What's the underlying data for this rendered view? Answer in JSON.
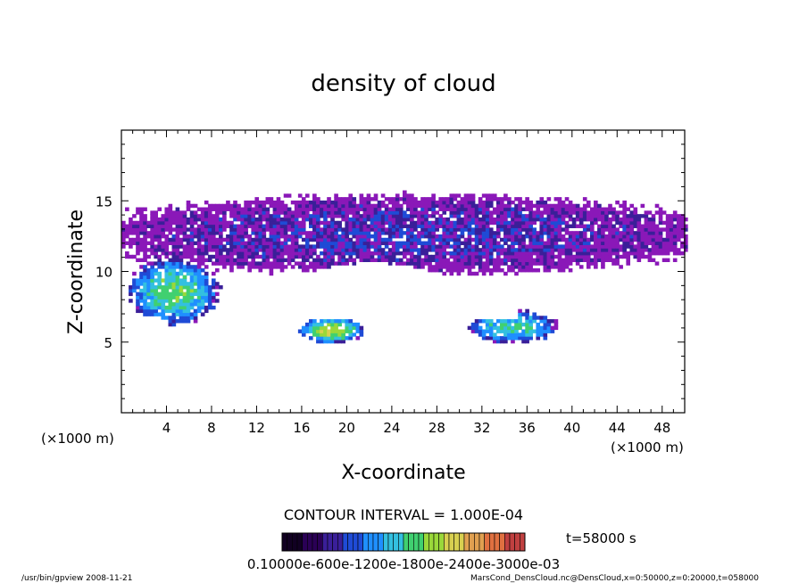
{
  "chart_data": {
    "type": "heatmap",
    "title": "density of cloud",
    "xlabel": "X-coordinate",
    "ylabel": "Z-coordinate",
    "x_unit": "(×1000 m)",
    "y_unit": "(×1000 m)",
    "xlim": [
      0,
      50
    ],
    "ylim": [
      0,
      20
    ],
    "x_ticks": [
      4,
      8,
      12,
      16,
      20,
      24,
      28,
      32,
      36,
      40,
      44,
      48
    ],
    "y_ticks": [
      5,
      10,
      15
    ],
    "contour_interval": "CONTOUR INTERVAL = 1.000E-04",
    "time_label": "t=58000 s",
    "colorbar": {
      "label": "0.10000e-600e-1200e-1800e-2400e-3000e-03",
      "colors": [
        "#110022",
        "#2a0055",
        "#3a1f99",
        "#1f4bd6",
        "#1f8fff",
        "#33c0e0",
        "#40d070",
        "#9ad83a",
        "#d8d050",
        "#e0a050",
        "#e07040",
        "#c04040"
      ]
    },
    "regions": [
      {
        "name": "upper cloud layer",
        "x": [
          0,
          50
        ],
        "z": [
          10,
          15
        ],
        "level": 0.15
      },
      {
        "name": "left dense core",
        "x": [
          1,
          8
        ],
        "z": [
          6.5,
          10.5
        ],
        "level": 0.45
      },
      {
        "name": "low patch near x=18",
        "x": [
          16,
          21
        ],
        "z": [
          5,
          6.5
        ],
        "level": 0.55
      },
      {
        "name": "low patch near x=35",
        "x": [
          31,
          38
        ],
        "z": [
          5,
          7
        ],
        "level": 0.4
      }
    ],
    "colormap_base": "#8a18b8"
  },
  "footer": {
    "left": "/usr/bin/gpview   2008-11-21",
    "right": "MarsCond_DensCloud.nc@DensCloud,x=0:50000,z=0:20000,t=058000"
  }
}
